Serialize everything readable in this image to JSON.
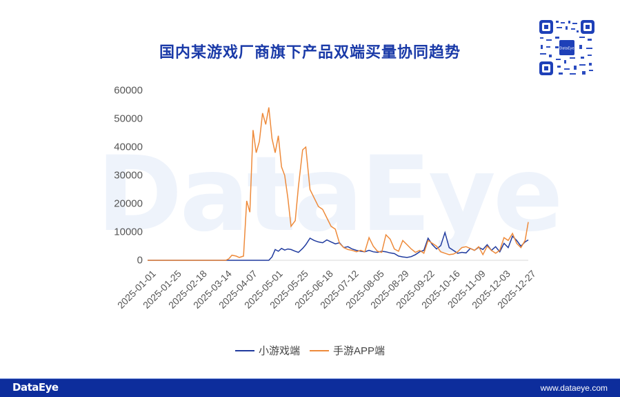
{
  "title": "国内某游戏厂商旗下产品双端买量协同趋势",
  "watermark": "DataEye",
  "qr": {
    "center_label": "DataEye"
  },
  "footer": {
    "logo": "DataEye",
    "url": "www.dataeye.com"
  },
  "colors": {
    "title": "#1a3aa8",
    "mini_game": "#1f3a9e",
    "app": "#ee8a3a",
    "footer_bg": "#0d2d9c"
  },
  "legend": [
    {
      "label": "小游戏端",
      "color": "#1f3a9e"
    },
    {
      "label": "手游APP端",
      "color": "#ee8a3a"
    }
  ],
  "chart_data": {
    "type": "line",
    "title": "国内某游戏厂商旗下产品双端买量协同趋势",
    "xlabel": "",
    "ylabel": "",
    "ylim": [
      0,
      60000
    ],
    "yticks": [
      "0",
      "10000",
      "20000",
      "30000",
      "40000",
      "50000",
      "60000"
    ],
    "xticks": [
      "2025-01-01",
      "2025-01-25",
      "2025-02-18",
      "2025-03-14",
      "2025-04-07",
      "2025-05-01",
      "2025-05-25",
      "2025-06-18",
      "2025-07-12",
      "2025-08-05",
      "2025-08-29",
      "2025-09-22",
      "2025-10-16",
      "2025-11-09",
      "2025-12-03",
      "2025-12-27"
    ],
    "grid": false,
    "legend_position": "bottom",
    "x_day_offsets": [
      0,
      7,
      14,
      21,
      28,
      35,
      42,
      49,
      56,
      63,
      70,
      74,
      77,
      80,
      84,
      87,
      91,
      94,
      97,
      100,
      103,
      106,
      109,
      112,
      115,
      118,
      121,
      124,
      127,
      130,
      133,
      136,
      140,
      143,
      147,
      150,
      154,
      158,
      162,
      166,
      170,
      174,
      178,
      182,
      186,
      190,
      194,
      198,
      202,
      206,
      210,
      214,
      218,
      222,
      226,
      230,
      234,
      238,
      242,
      246,
      250,
      254,
      258,
      262,
      266,
      270,
      274,
      278,
      282,
      286,
      290,
      294,
      298,
      302,
      306,
      310,
      314,
      318,
      322,
      326,
      330,
      334,
      338,
      342,
      346,
      350,
      354,
      358,
      361
    ],
    "series": [
      {
        "name": "小游戏端",
        "values": [
          0,
          0,
          0,
          0,
          0,
          0,
          0,
          0,
          0,
          0,
          0,
          0,
          0,
          0,
          0,
          0,
          0,
          0,
          0,
          0,
          0,
          0,
          0,
          0,
          0,
          1200,
          3800,
          3200,
          4200,
          3600,
          4000,
          3800,
          3200,
          2800,
          4200,
          5500,
          7800,
          7000,
          6500,
          6200,
          7200,
          6500,
          5800,
          6200,
          4500,
          4800,
          4000,
          3500,
          3200,
          3000,
          3500,
          3000,
          2800,
          3200,
          3000,
          2600,
          2400,
          1500,
          1200,
          1000,
          1300,
          2000,
          3000,
          3500,
          7800,
          5500,
          4000,
          5200,
          9800,
          4500,
          3500,
          2500,
          2800,
          2600,
          4200,
          3500,
          4600,
          3800,
          5500,
          3500,
          4800,
          3000,
          6000,
          4500,
          8500,
          7000,
          5000,
          6500,
          7200
        ]
      },
      {
        "name": "手游APP端",
        "values": [
          0,
          0,
          0,
          0,
          0,
          0,
          0,
          0,
          0,
          0,
          0,
          0,
          500,
          1800,
          1500,
          1000,
          1500,
          21000,
          17000,
          46000,
          38000,
          42000,
          52000,
          48000,
          54000,
          43000,
          38000,
          44000,
          33000,
          30000,
          22000,
          12000,
          14000,
          26000,
          39000,
          40000,
          25000,
          22000,
          19000,
          18000,
          15000,
          12000,
          11000,
          6000,
          4500,
          3800,
          3500,
          3000,
          3500,
          3000,
          8000,
          5000,
          3200,
          2800,
          9000,
          7500,
          4000,
          3200,
          7000,
          5500,
          4000,
          2800,
          3500,
          2500,
          7000,
          6000,
          5000,
          3000,
          2500,
          2000,
          2200,
          3000,
          4500,
          4800,
          4200,
          3500,
          4800,
          2000,
          5000,
          3500,
          2500,
          3500,
          8000,
          7000,
          9500,
          6000,
          4500,
          7000,
          13500
        ]
      }
    ]
  }
}
